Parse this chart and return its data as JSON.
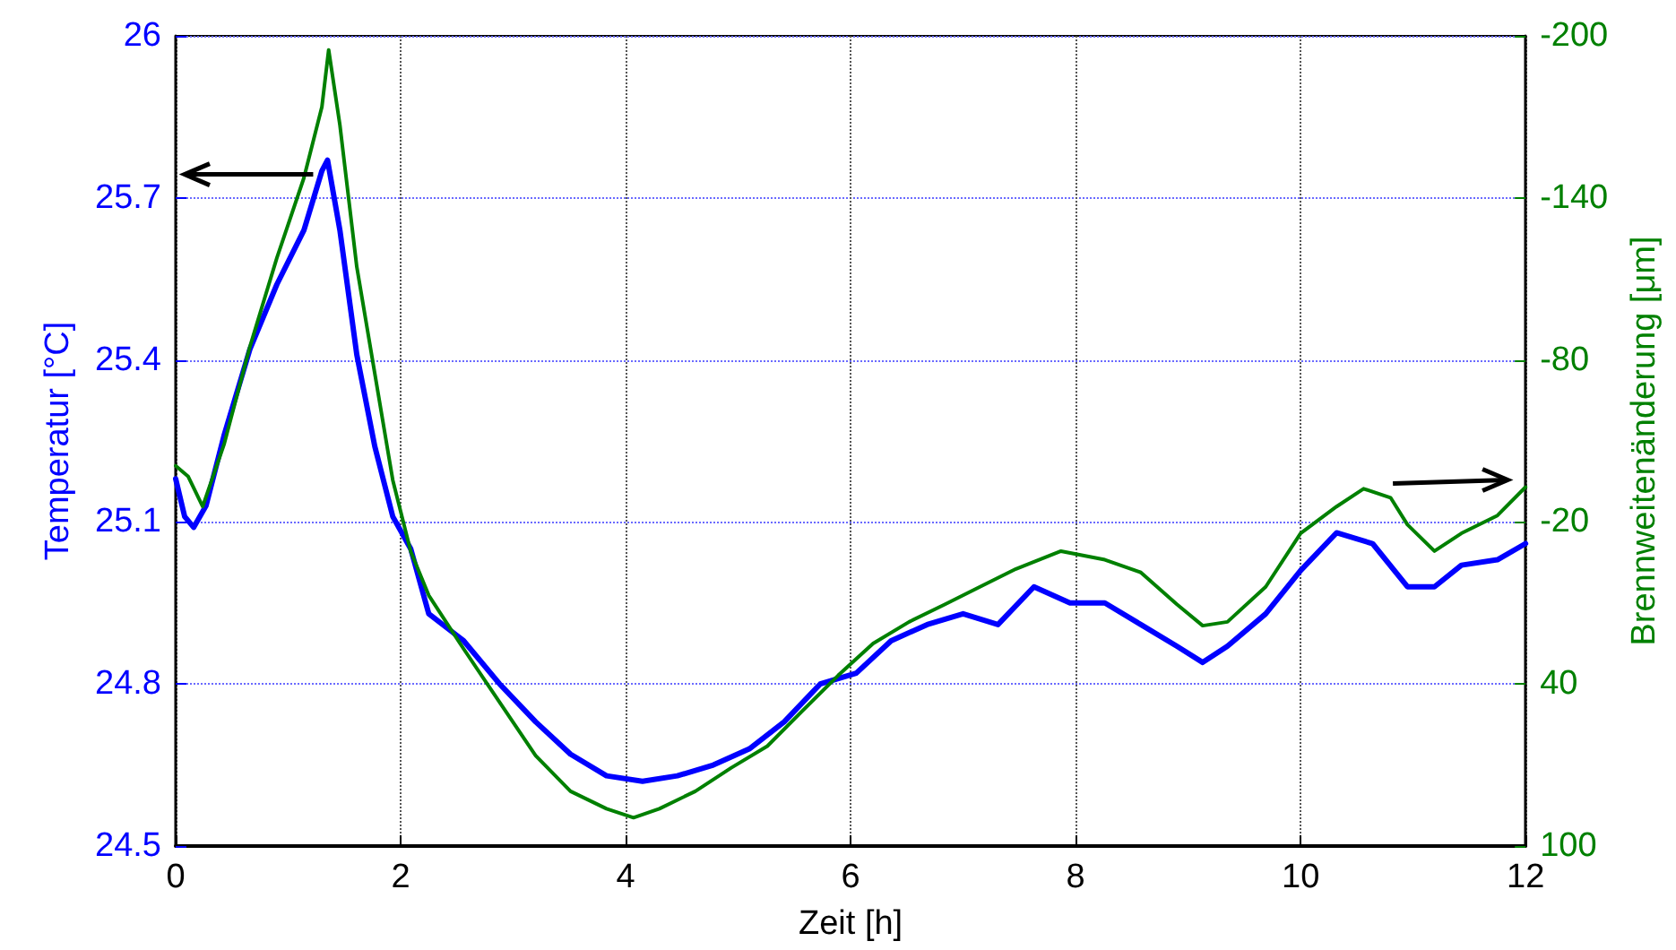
{
  "chart_data": {
    "type": "line",
    "xlabel": "Zeit [h]",
    "ylabel": "Temperatur [°C]",
    "y2label": "Brennweitenänderung [μm]",
    "xlim": [
      0,
      12
    ],
    "xticks": [
      0,
      2,
      4,
      6,
      8,
      10,
      12
    ],
    "ylim": [
      24.5,
      26
    ],
    "yticks": [
      24.5,
      24.8,
      25.1,
      25.4,
      25.7,
      26
    ],
    "y2lim": [
      100,
      -200
    ],
    "y2ticks": [
      100,
      40,
      -20,
      -80,
      -140,
      -200
    ],
    "grid": true,
    "marker": "none",
    "line_style": "solid",
    "series": [
      {
        "color": "#0000ff",
        "x": [
          0,
          0.08,
          0.16,
          0.27,
          0.43,
          0.66,
          0.9,
          1.14,
          1.3,
          1.35,
          1.46,
          1.61,
          1.77,
          1.93,
          2.09,
          2.25,
          2.56,
          2.88,
          3.2,
          3.51,
          3.83,
          4.15,
          4.46,
          4.78,
          5.1,
          5.41,
          5.73,
          6.05,
          6.36,
          6.68,
          7.0,
          7.31,
          7.63,
          7.95,
          8.26,
          8.58,
          8.9,
          9.13,
          9.35,
          9.69,
          10.0,
          10.32,
          10.64,
          10.95,
          11.19,
          11.43,
          11.75,
          12
        ],
        "values": [
          25.18,
          25.11,
          25.09,
          25.13,
          25.26,
          25.42,
          25.54,
          25.64,
          25.75,
          25.77,
          25.64,
          25.41,
          25.24,
          25.11,
          25.05,
          24.93,
          24.88,
          24.8,
          24.73,
          24.67,
          24.63,
          24.62,
          24.63,
          24.65,
          24.68,
          24.73,
          24.8,
          24.82,
          24.88,
          24.91,
          24.93,
          24.91,
          24.98,
          24.95,
          24.95,
          24.91,
          24.87,
          24.84,
          24.87,
          24.93,
          25.01,
          25.08,
          25.06,
          24.98,
          24.98,
          25.02,
          25.03,
          25.06
        ]
      },
      {
        "color": "#008000",
        "axis": "y2",
        "x": [
          0,
          0.11,
          0.24,
          0.43,
          0.66,
          0.9,
          1.14,
          1.3,
          1.36,
          1.46,
          1.61,
          1.77,
          1.93,
          2.09,
          2.25,
          2.56,
          2.88,
          3.2,
          3.51,
          3.83,
          4.07,
          4.3,
          4.62,
          4.94,
          5.26,
          5.57,
          5.89,
          6.2,
          6.52,
          6.84,
          7.15,
          7.47,
          7.87,
          8.26,
          8.58,
          8.9,
          9.13,
          9.35,
          9.69,
          10.0,
          10.32,
          10.56,
          10.8,
          10.95,
          11.19,
          11.43,
          11.75,
          12
        ],
        "values": [
          -40.8,
          -36.9,
          -25.7,
          -48.7,
          -84.9,
          -117.8,
          -147.4,
          -173.7,
          -194.8,
          -167,
          -114.5,
          -75,
          -35.5,
          -9,
          7.2,
          27,
          46.8,
          66.5,
          79.7,
          86.2,
          89.5,
          86.2,
          79.7,
          71,
          63,
          50,
          36.8,
          25,
          17,
          10.5,
          4,
          -2.6,
          -9.2,
          -6,
          -1.3,
          10.5,
          18.4,
          17,
          4,
          -15.8,
          -25.7,
          -32.3,
          -29,
          -19,
          -9.2,
          -15.8,
          -22.4,
          -32.9
        ]
      }
    ]
  }
}
